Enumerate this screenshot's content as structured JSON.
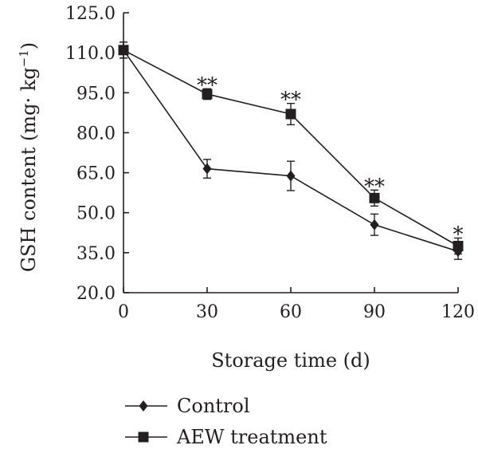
{
  "chart_data": {
    "type": "line",
    "xlabel": "Storage time (d)",
    "ylabel": "GSH content (mg· kg",
    "ylabel_sup": "−1",
    "ylabel_close": ")",
    "x": [
      0,
      30,
      60,
      90,
      120
    ],
    "xlim": [
      0,
      120
    ],
    "ylim": [
      20,
      125
    ],
    "xticks": [
      "0",
      "30",
      "60",
      "90",
      "120"
    ],
    "yticks": [
      "20.0",
      "35.0",
      "50.0",
      "65.0",
      "80.0",
      "95.0",
      "110.0",
      "125.0"
    ],
    "grid": false,
    "legend_position": "bottom",
    "series": [
      {
        "name": "Control",
        "marker": "diamond",
        "values": [
          111.0,
          66.5,
          63.8,
          45.5,
          35.5
        ],
        "errors": [
          3.0,
          3.5,
          5.5,
          4.0,
          3.0
        ]
      },
      {
        "name": "AEW treatment",
        "marker": "square",
        "values": [
          111.0,
          94.5,
          87.0,
          55.5,
          37.5
        ],
        "errors": [
          3.0,
          2.0,
          4.0,
          3.0,
          3.0
        ]
      }
    ],
    "annotations": [
      "",
      "**",
      "**",
      "**",
      "*"
    ]
  }
}
